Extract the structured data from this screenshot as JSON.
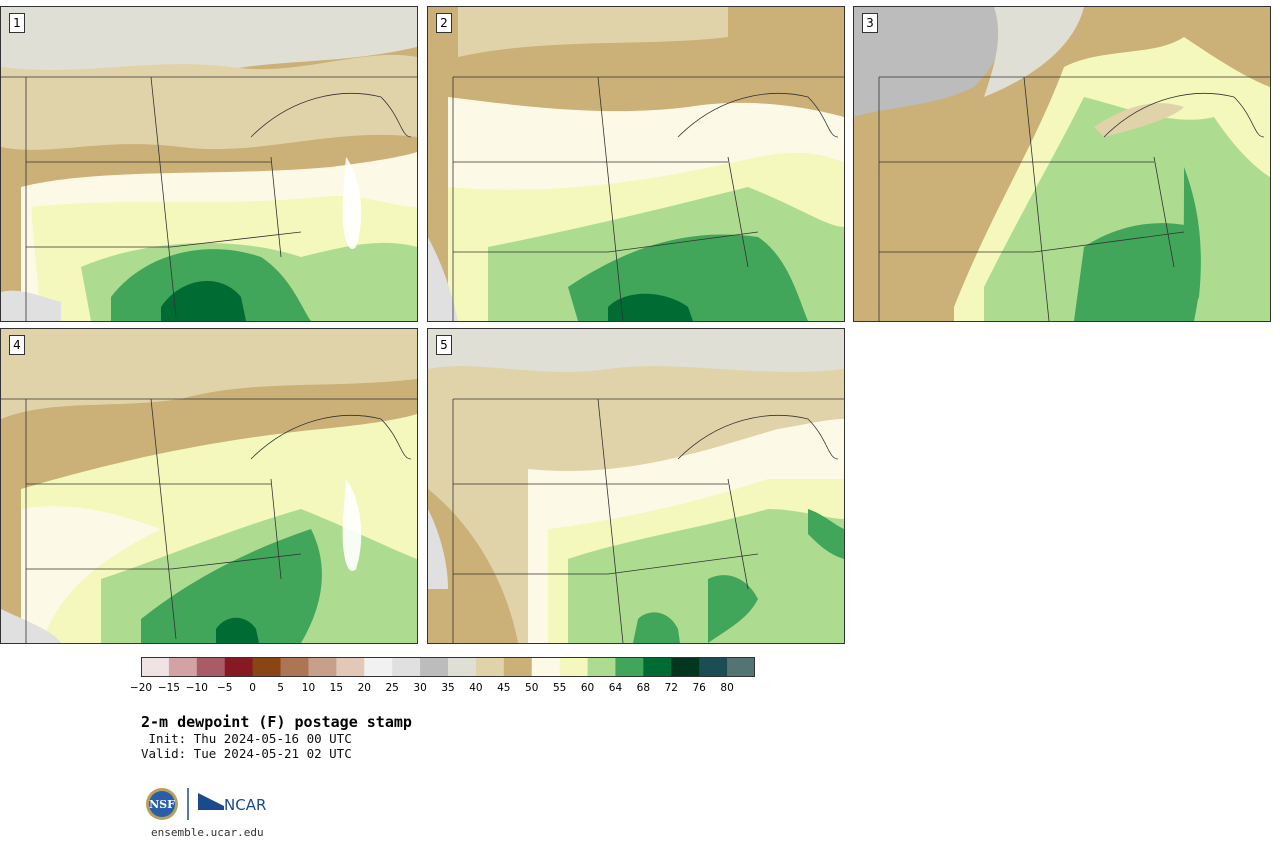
{
  "panels": [
    {
      "label": "1"
    },
    {
      "label": "2"
    },
    {
      "label": "3"
    },
    {
      "label": "4"
    },
    {
      "label": "5"
    }
  ],
  "colorbar": {
    "colors": [
      "#efe4e3",
      "#d3a2a5",
      "#a95c66",
      "#861a22",
      "#8a4515",
      "#ac7655",
      "#c6a08a",
      "#e1c8b7",
      "#f1f1f1",
      "#e0e0e0",
      "#bcbcbc",
      "#e0dfd6",
      "#e1d3a9",
      "#cbb077",
      "#fcfae6",
      "#f4f8bc",
      "#addc90",
      "#41a55a",
      "#006b33",
      "#04351f",
      "#1c4c54",
      "#547474"
    ],
    "ticks": [
      "−20",
      "−15",
      "−10",
      "−5",
      "0",
      "5",
      "10",
      "15",
      "20",
      "25",
      "30",
      "35",
      "40",
      "45",
      "50",
      "55",
      "60",
      "64",
      "68",
      "72",
      "76",
      "80"
    ]
  },
  "title": "2-m dewpoint (F) postage stamp",
  "init": " Init: Thu 2024-05-16 00 UTC",
  "valid": "Valid: Tue 2024-05-21 02 UTC",
  "logos": {
    "nsf": "NSF",
    "ncar": "NCAR"
  },
  "site": "ensemble.ucar.edu"
}
